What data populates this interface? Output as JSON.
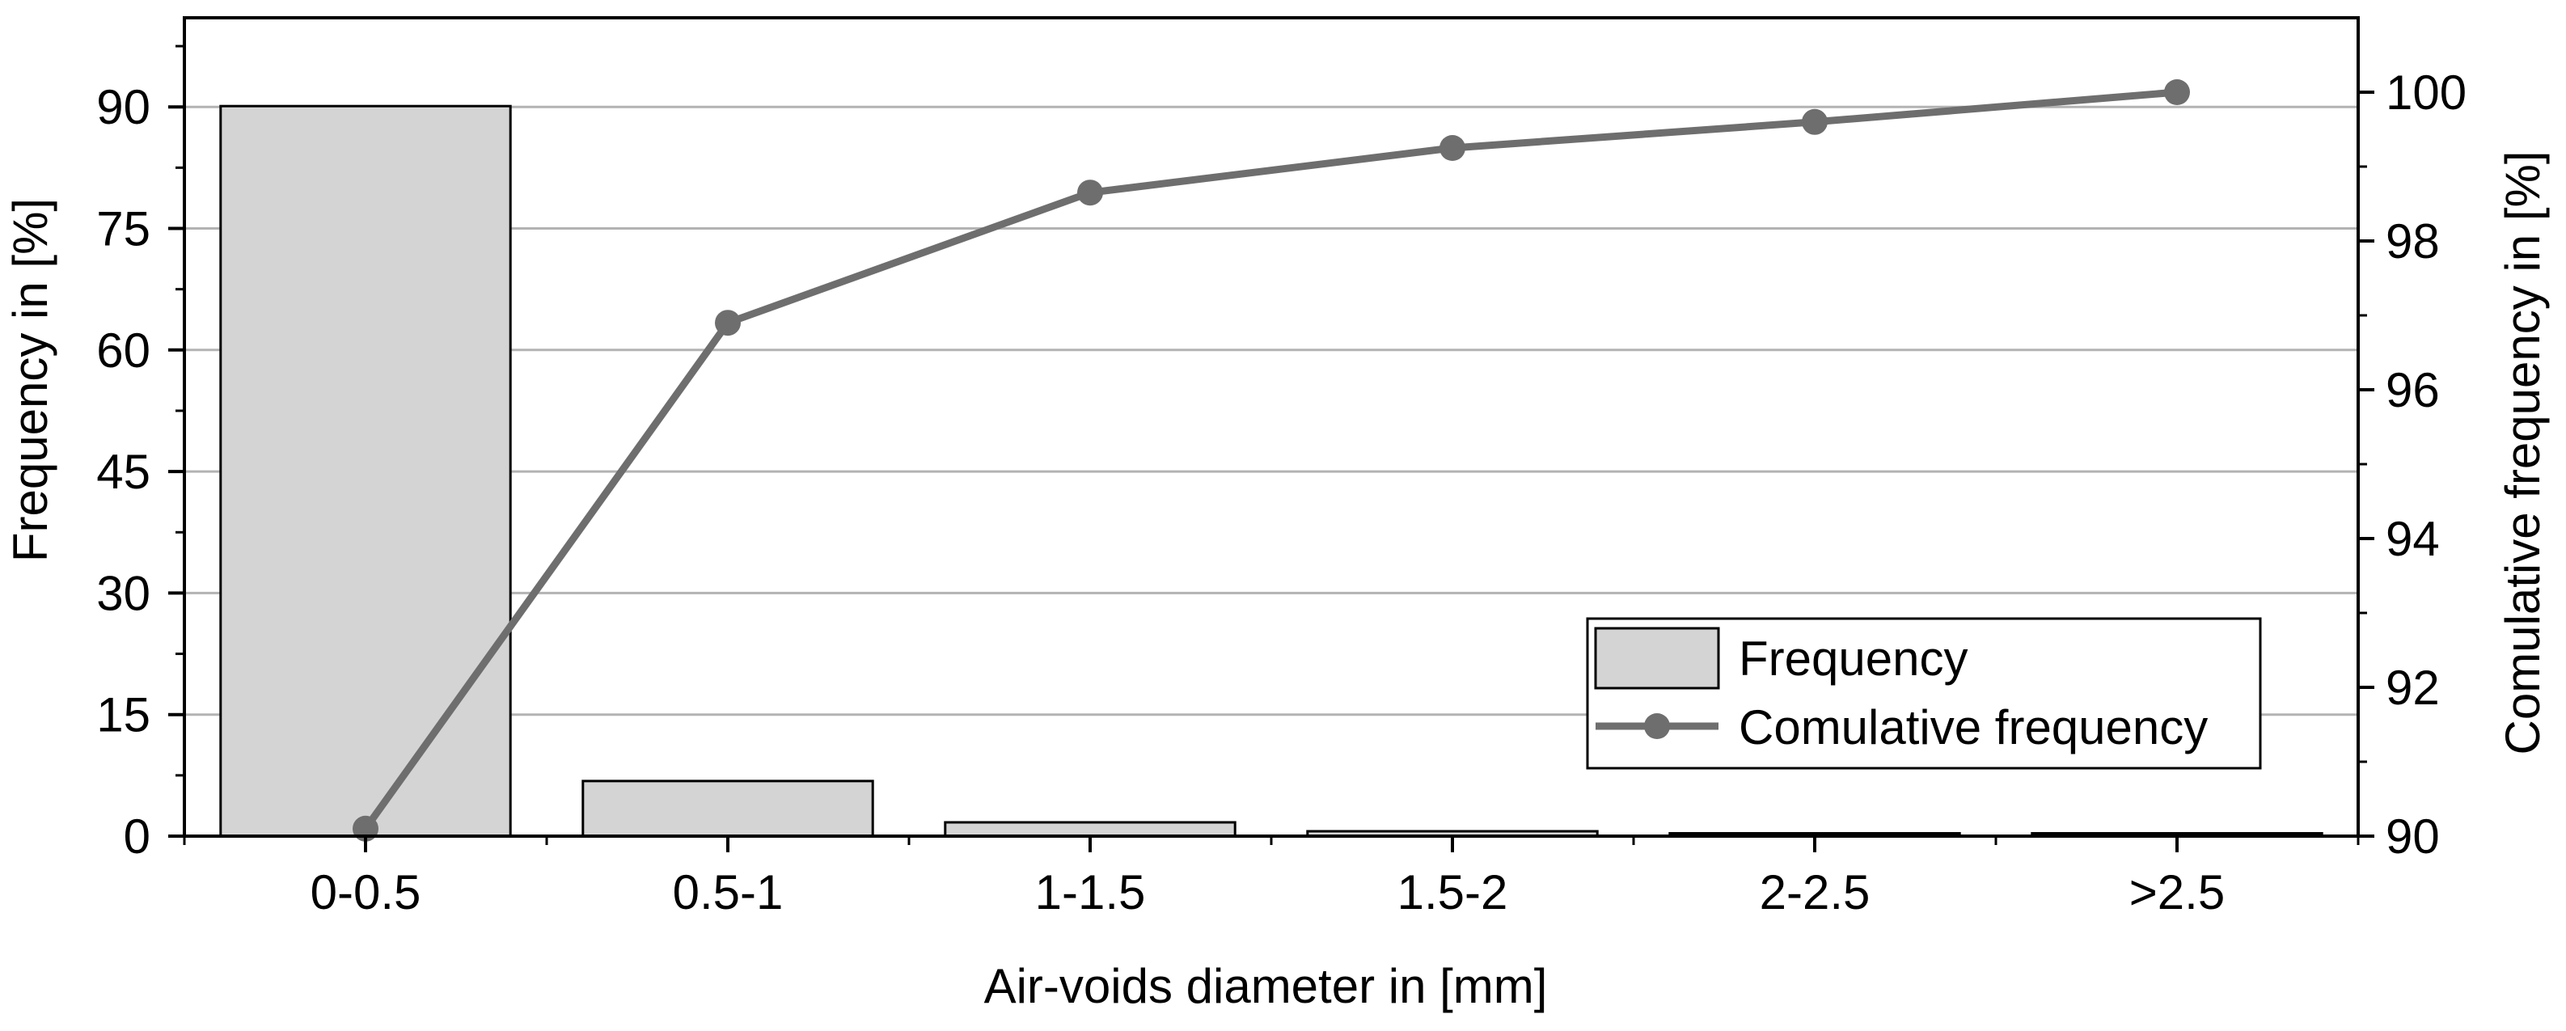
{
  "chart_data": {
    "type": "bar+line",
    "categories": [
      "0-0.5",
      "0.5-1",
      "1-1.5",
      "1.5-2",
      "2-2.5",
      ">2.5"
    ],
    "xlabel": "Air-voids diameter in [mm]",
    "ylabel_left": "Frequency in [%]",
    "ylabel_right": "Comulative frequency in [%]",
    "y_left": {
      "lim": [
        0,
        101
      ],
      "ticks": [
        0,
        15,
        30,
        45,
        60,
        75,
        90
      ]
    },
    "y_right": {
      "lim": [
        90,
        101
      ],
      "ticks": [
        90,
        92,
        94,
        96,
        98,
        100
      ]
    },
    "grid": "horizontal",
    "legend_position": "lower-right",
    "series": [
      {
        "name": "Frequency",
        "type": "bar",
        "axis": "left",
        "color": "#d4d4d4",
        "values": [
          90.1,
          6.8,
          1.7,
          0.6,
          0.35,
          0.35
        ]
      },
      {
        "name": "Comulative frequency",
        "type": "line",
        "axis": "right",
        "color": "#6e6e6e",
        "values": [
          90.1,
          96.9,
          98.65,
          99.25,
          99.6,
          100.0
        ]
      }
    ]
  }
}
